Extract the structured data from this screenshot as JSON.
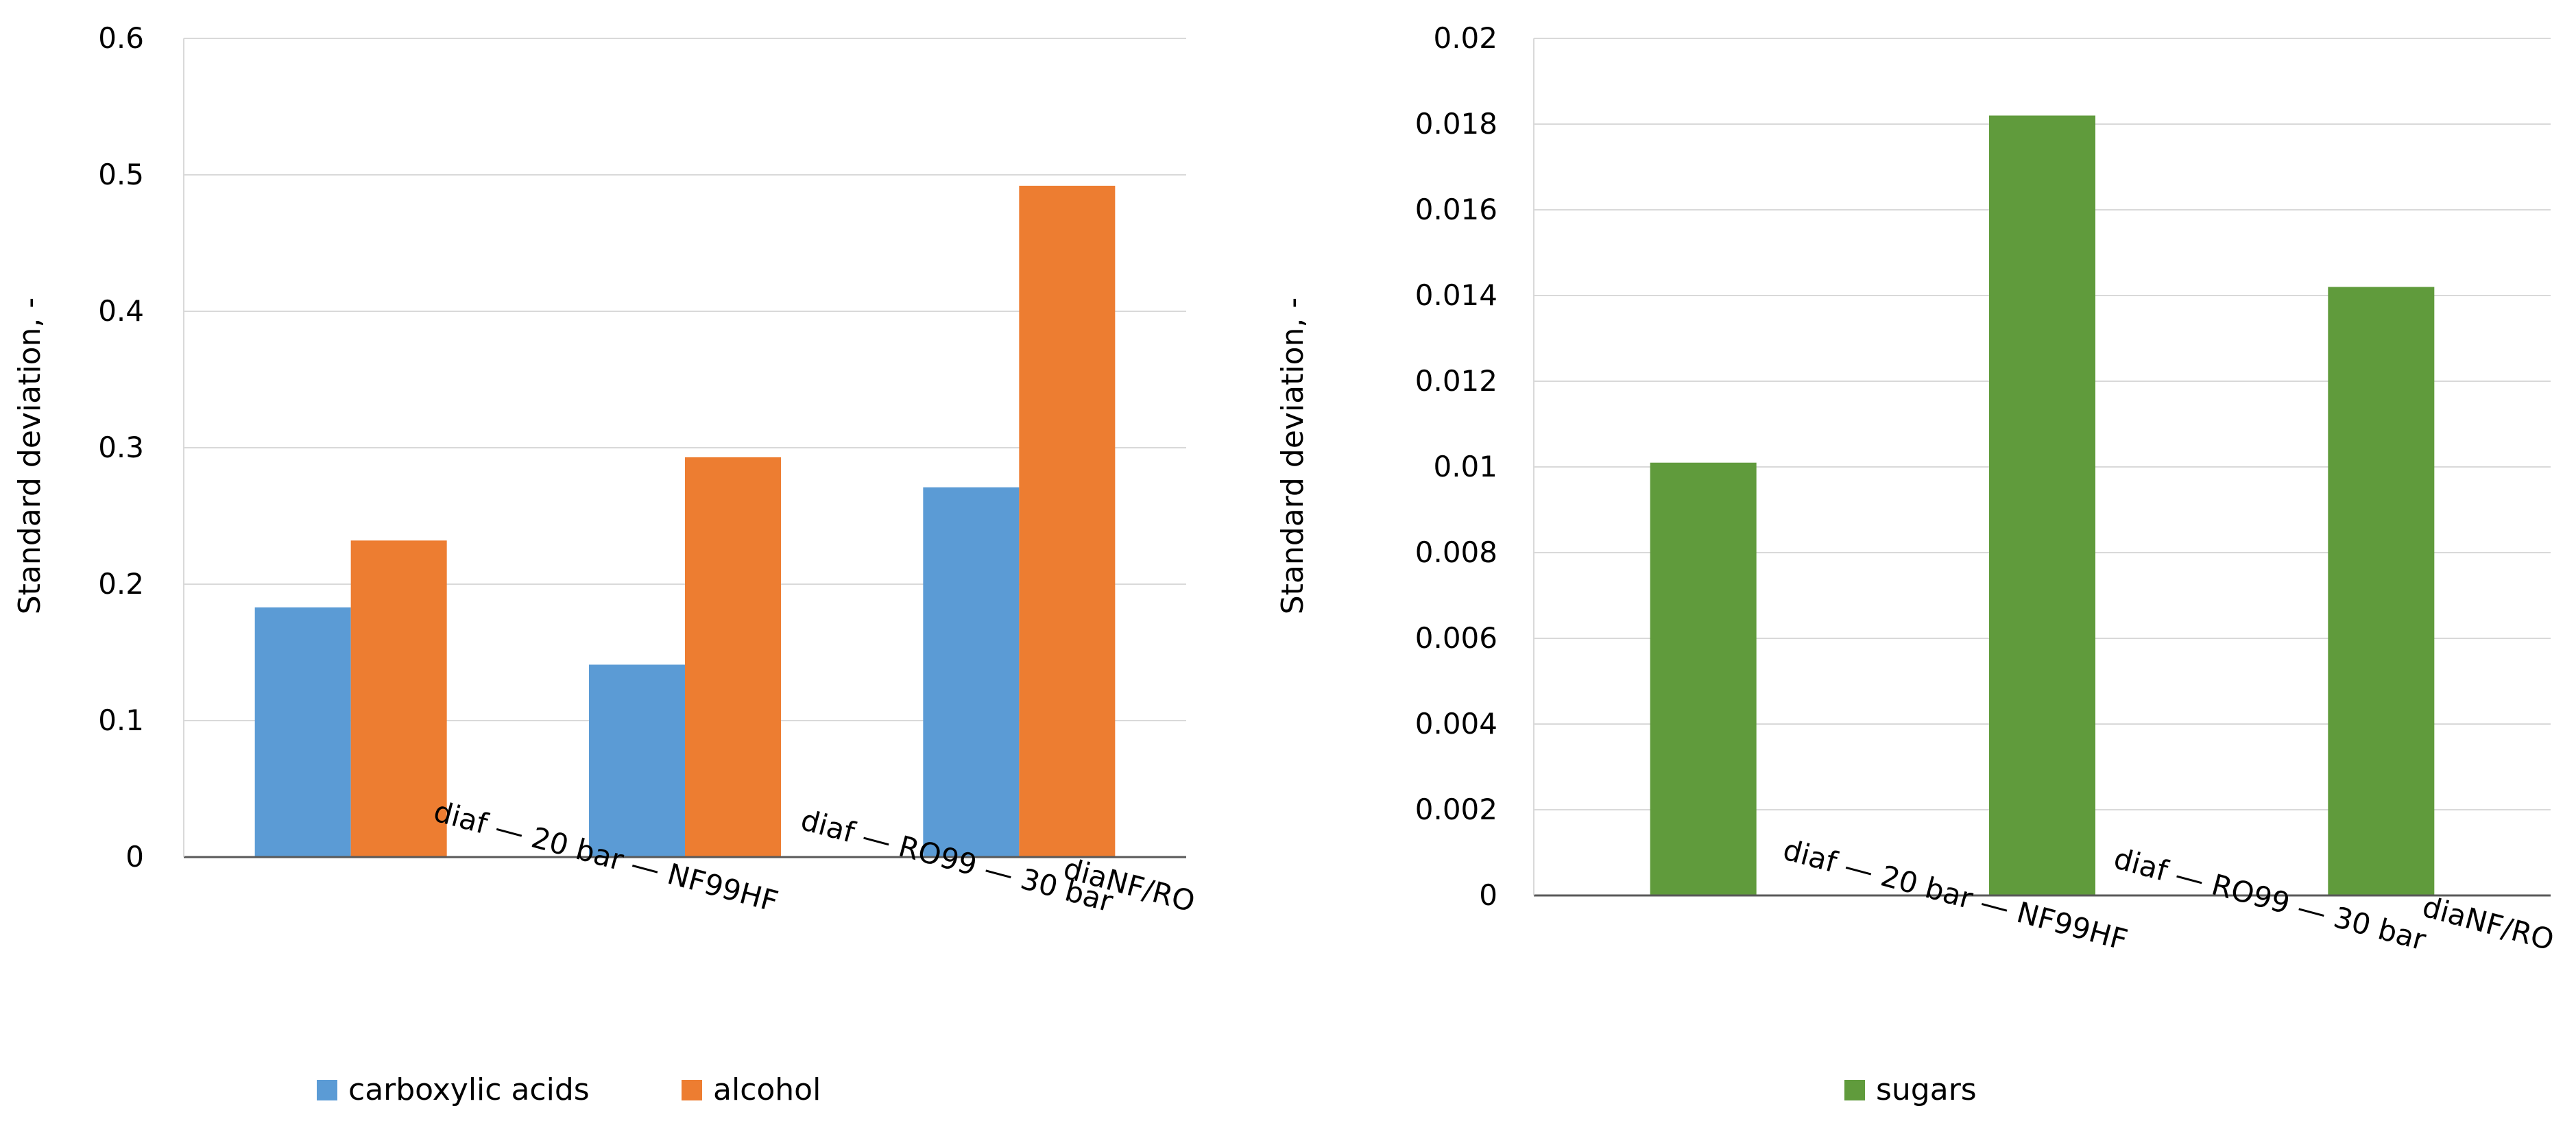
{
  "chart_data": [
    {
      "type": "bar",
      "categories": [
        "diaf — 20 bar — NF99HF",
        "diaf — RO99 — 30 bar",
        "diaNF/RO"
      ],
      "series": [
        {
          "name": "carboxylic acids",
          "values": [
            0.183,
            0.141,
            0.271
          ],
          "color": "#5b9bd5"
        },
        {
          "name": "alcohol",
          "values": [
            0.232,
            0.293,
            0.492
          ],
          "color": "#ed7d31"
        }
      ],
      "ylabel": "Standard deviation, -",
      "xlabel": "",
      "ylim": [
        0,
        0.6
      ],
      "yticks": [
        "0",
        "0.1",
        "0.2",
        "0.3",
        "0.4",
        "0.5",
        "0.6"
      ],
      "grid": true,
      "legend": "bottom"
    },
    {
      "type": "bar",
      "categories": [
        "diaf — 20 bar — NF99HF",
        "diaf — RO99 — 30 bar",
        "diaNF/RO"
      ],
      "series": [
        {
          "name": "sugars",
          "values": [
            0.0101,
            0.0182,
            0.0142
          ],
          "color": "#609b3c"
        }
      ],
      "ylabel": "Standard deviation, -",
      "xlabel": "",
      "ylim": [
        0,
        0.02
      ],
      "yticks": [
        "0",
        "0.002",
        "0.004",
        "0.006",
        "0.008",
        "0.01",
        "0.012",
        "0.014",
        "0.016",
        "0.018",
        "0.02"
      ],
      "grid": true,
      "legend": "bottom"
    }
  ]
}
